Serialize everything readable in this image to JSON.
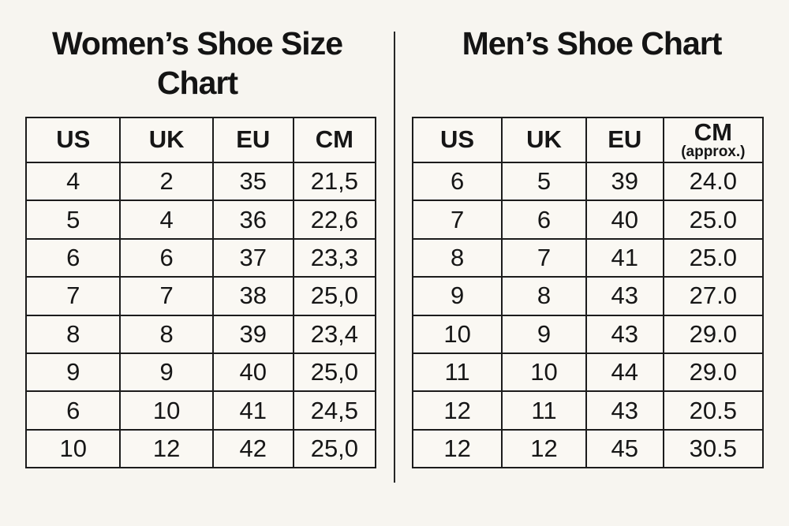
{
  "page": {
    "background_color": "#f7f5f0",
    "text_color": "#161616",
    "border_color": "#1c1c1c"
  },
  "women": {
    "title_line1": "Women’s Shoe Size",
    "title_line2": "Chart",
    "headers": [
      "US",
      "UK",
      "EU",
      "CM"
    ],
    "rows": [
      [
        "4",
        "2",
        "35",
        "21,5"
      ],
      [
        "5",
        "4",
        "36",
        "22,6"
      ],
      [
        "6",
        "6",
        "37",
        "23,3"
      ],
      [
        "7",
        "7",
        "38",
        "25,0"
      ],
      [
        "8",
        "8",
        "39",
        "23,4"
      ],
      [
        "9",
        "9",
        "40",
        "25,0"
      ],
      [
        "6",
        "10",
        "41",
        "24,5"
      ],
      [
        "10",
        "12",
        "42",
        "25,0"
      ]
    ]
  },
  "men": {
    "title": "Men’s Shoe Chart",
    "headers": [
      "US",
      "UK",
      "EU",
      "CM"
    ],
    "header_note": "(approx.)",
    "rows": [
      [
        "6",
        "5",
        "39",
        "24.0"
      ],
      [
        "7",
        "6",
        "40",
        "25.0"
      ],
      [
        "8",
        "7",
        "41",
        "25.0"
      ],
      [
        "9",
        "8",
        "43",
        "27.0"
      ],
      [
        "10",
        "9",
        "43",
        "29.0"
      ],
      [
        "11",
        "10",
        "44",
        "29.0"
      ],
      [
        "12",
        "11",
        "43",
        "20.5"
      ],
      [
        "12",
        "12",
        "45",
        "30.5"
      ]
    ]
  },
  "chart_data": [
    {
      "type": "table",
      "title": "Women’s Shoe Size Chart",
      "columns": [
        "US",
        "UK",
        "EU",
        "CM"
      ],
      "rows": [
        [
          "4",
          "2",
          "35",
          "21,5"
        ],
        [
          "5",
          "4",
          "36",
          "22,6"
        ],
        [
          "6",
          "6",
          "37",
          "23,3"
        ],
        [
          "7",
          "7",
          "38",
          "25,0"
        ],
        [
          "8",
          "8",
          "39",
          "23,4"
        ],
        [
          "9",
          "9",
          "40",
          "25,0"
        ],
        [
          "6",
          "10",
          "41",
          "24,5"
        ],
        [
          "10",
          "12",
          "42",
          "25,0"
        ]
      ]
    },
    {
      "type": "table",
      "title": "Men’s Shoe Chart",
      "columns": [
        "US",
        "UK",
        "EU",
        "CM (approx.)"
      ],
      "rows": [
        [
          "6",
          "5",
          "39",
          "24.0"
        ],
        [
          "7",
          "6",
          "40",
          "25.0"
        ],
        [
          "8",
          "7",
          "41",
          "25.0"
        ],
        [
          "9",
          "8",
          "43",
          "27.0"
        ],
        [
          "10",
          "9",
          "43",
          "29.0"
        ],
        [
          "11",
          "10",
          "44",
          "29.0"
        ],
        [
          "12",
          "11",
          "43",
          "20.5"
        ],
        [
          "12",
          "12",
          "45",
          "30.5"
        ]
      ]
    }
  ]
}
